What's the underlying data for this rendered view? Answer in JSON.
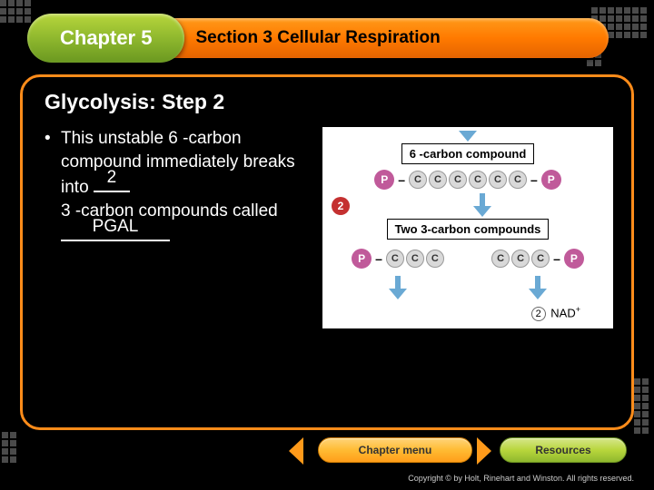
{
  "header": {
    "chapter": "Chapter 5",
    "section": "Section 3 Cellular Respiration"
  },
  "slide": {
    "title": "Glycolysis: Step 2",
    "bullet_prefix": "This unstable 6 -carbon compound immediately breaks into",
    "blank1_fill": "2",
    "bullet_mid": "3 -carbon compounds called",
    "blank2_fill": "PGAL"
  },
  "diagram": {
    "top_label": "6 -carbon compound",
    "step_number": "2",
    "mid_label": "Two 3-carbon compounds",
    "p_label": "P",
    "c_label": "C",
    "nad_line_two": "2",
    "nad_line_text": "NAD",
    "nad_line_sup": "+",
    "colors": {
      "phosphate": "#c05a9a",
      "carbon": "#d9d9d9",
      "arrow": "#6aa9d4",
      "step_circle": "#c43030"
    }
  },
  "nav": {
    "chapter_menu": "Chapter menu",
    "resources": "Resources"
  },
  "footer": {
    "copyright": "Copyright © by Holt, Rinehart and Winston. All rights reserved."
  },
  "style": {
    "orange_accent": "#ff8c1a",
    "green_accent": "#8fb82e",
    "bg": "#000000",
    "text": "#ffffff"
  }
}
